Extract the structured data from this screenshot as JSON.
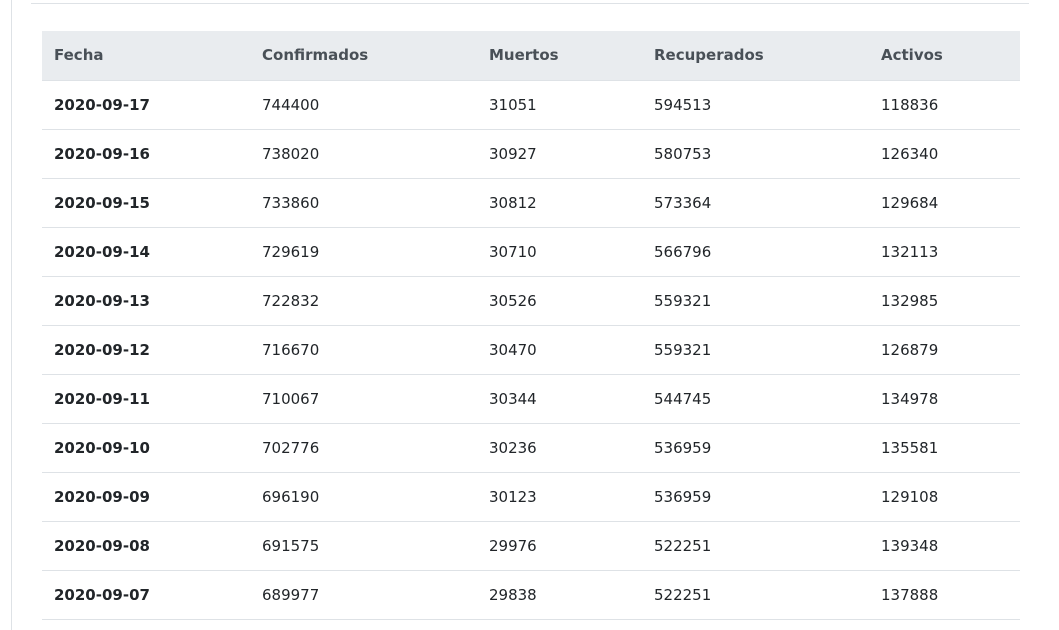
{
  "table": {
    "headers": [
      "Fecha",
      "Confirmados",
      "Muertos",
      "Recuperados",
      "Activos"
    ],
    "rows": [
      [
        "2020-09-17",
        "744400",
        "31051",
        "594513",
        "118836"
      ],
      [
        "2020-09-16",
        "738020",
        "30927",
        "580753",
        "126340"
      ],
      [
        "2020-09-15",
        "733860",
        "30812",
        "573364",
        "129684"
      ],
      [
        "2020-09-14",
        "729619",
        "30710",
        "566796",
        "132113"
      ],
      [
        "2020-09-13",
        "722832",
        "30526",
        "559321",
        "132985"
      ],
      [
        "2020-09-12",
        "716670",
        "30470",
        "559321",
        "126879"
      ],
      [
        "2020-09-11",
        "710067",
        "30344",
        "544745",
        "134978"
      ],
      [
        "2020-09-10",
        "702776",
        "30236",
        "536959",
        "135581"
      ],
      [
        "2020-09-09",
        "696190",
        "30123",
        "536959",
        "129108"
      ],
      [
        "2020-09-08",
        "691575",
        "29976",
        "522251",
        "139348"
      ],
      [
        "2020-09-07",
        "689977",
        "29838",
        "522251",
        "137888"
      ]
    ]
  },
  "colors": {
    "header_bg": "#e9ecef",
    "border": "#dee2e6",
    "text": "#212529",
    "header_text": "#495057"
  }
}
